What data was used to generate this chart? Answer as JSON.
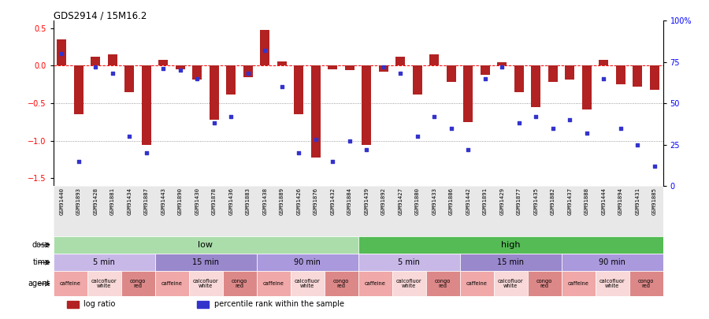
{
  "title": "GDS2914 / 15M16.2",
  "samples": [
    "GSM91440",
    "GSM91893",
    "GSM91428",
    "GSM91881",
    "GSM91434",
    "GSM91887",
    "GSM91443",
    "GSM91890",
    "GSM91430",
    "GSM91878",
    "GSM91436",
    "GSM91883",
    "GSM91438",
    "GSM91889",
    "GSM91426",
    "GSM91876",
    "GSM91432",
    "GSM91884",
    "GSM91439",
    "GSM91892",
    "GSM91427",
    "GSM91880",
    "GSM91433",
    "GSM91886",
    "GSM91442",
    "GSM91891",
    "GSM91429",
    "GSM91877",
    "GSM91435",
    "GSM91882",
    "GSM91437",
    "GSM91888",
    "GSM91444",
    "GSM91894",
    "GSM91431",
    "GSM91885"
  ],
  "log_ratio": [
    0.35,
    -0.65,
    0.12,
    0.15,
    -0.35,
    -1.05,
    0.08,
    -0.05,
    -0.18,
    -0.72,
    -0.38,
    -0.15,
    0.48,
    0.06,
    -0.65,
    -1.22,
    -0.05,
    -0.06,
    -1.05,
    -0.08,
    0.12,
    -0.38,
    0.15,
    -0.22,
    -0.75,
    -0.12,
    0.05,
    -0.35,
    -0.55,
    -0.22,
    -0.18,
    -0.58,
    0.08,
    -0.25,
    -0.28,
    -0.32
  ],
  "percentile_rank": [
    80,
    15,
    72,
    68,
    30,
    20,
    71,
    70,
    65,
    38,
    42,
    68,
    82,
    60,
    20,
    28,
    15,
    27,
    22,
    72,
    68,
    30,
    42,
    35,
    22,
    65,
    72,
    38,
    42,
    35,
    40,
    32,
    65,
    35,
    25,
    12
  ],
  "bar_color": "#b22222",
  "dot_color": "#3333cc",
  "ylim_left": [
    -1.6,
    0.6
  ],
  "ylim_right": [
    0,
    100
  ],
  "yticks_left": [
    0.5,
    0.0,
    -0.5,
    -1.0,
    -1.5
  ],
  "yticks_right": [
    100,
    75,
    50,
    25,
    0
  ],
  "hline_y": 0,
  "dotted_lines": [
    -0.5,
    -1.0
  ],
  "dose_groups": [
    {
      "label": "low",
      "start": 0,
      "end": 18,
      "color": "#aaddaa"
    },
    {
      "label": "high",
      "start": 18,
      "end": 36,
      "color": "#55bb55"
    }
  ],
  "time_groups": [
    {
      "label": "5 min",
      "start": 0,
      "end": 6,
      "color": "#c8b8e8"
    },
    {
      "label": "15 min",
      "start": 6,
      "end": 12,
      "color": "#9988cc"
    },
    {
      "label": "90 min",
      "start": 12,
      "end": 18,
      "color": "#aa99dd"
    },
    {
      "label": "5 min",
      "start": 18,
      "end": 24,
      "color": "#c8b8e8"
    },
    {
      "label": "15 min",
      "start": 24,
      "end": 30,
      "color": "#9988cc"
    },
    {
      "label": "90 min",
      "start": 30,
      "end": 36,
      "color": "#aa99dd"
    }
  ],
  "agent_groups": [
    {
      "label": "caffeine",
      "start": 0,
      "end": 2,
      "color": "#f0a8a8"
    },
    {
      "label": "calcofluor\nwhite",
      "start": 2,
      "end": 4,
      "color": "#f8d8d8"
    },
    {
      "label": "congo\nred",
      "start": 4,
      "end": 6,
      "color": "#dd8888"
    },
    {
      "label": "caffeine",
      "start": 6,
      "end": 8,
      "color": "#f0a8a8"
    },
    {
      "label": "calcofluor\nwhite",
      "start": 8,
      "end": 10,
      "color": "#f8d8d8"
    },
    {
      "label": "congo\nred",
      "start": 10,
      "end": 12,
      "color": "#dd8888"
    },
    {
      "label": "caffeine",
      "start": 12,
      "end": 14,
      "color": "#f0a8a8"
    },
    {
      "label": "calcofluor\nwhite",
      "start": 14,
      "end": 16,
      "color": "#f8d8d8"
    },
    {
      "label": "congo\nred",
      "start": 16,
      "end": 18,
      "color": "#dd8888"
    },
    {
      "label": "caffeine",
      "start": 18,
      "end": 20,
      "color": "#f0a8a8"
    },
    {
      "label": "calcofluor\nwhite",
      "start": 20,
      "end": 22,
      "color": "#f8d8d8"
    },
    {
      "label": "congo\nred",
      "start": 22,
      "end": 24,
      "color": "#dd8888"
    },
    {
      "label": "caffeine",
      "start": 24,
      "end": 26,
      "color": "#f0a8a8"
    },
    {
      "label": "calcofluor\nwhite",
      "start": 26,
      "end": 28,
      "color": "#f8d8d8"
    },
    {
      "label": "congo\nred",
      "start": 28,
      "end": 30,
      "color": "#dd8888"
    },
    {
      "label": "caffeine",
      "start": 30,
      "end": 32,
      "color": "#f0a8a8"
    },
    {
      "label": "calcofluor\nwhite",
      "start": 32,
      "end": 34,
      "color": "#f8d8d8"
    },
    {
      "label": "congo\nred",
      "start": 34,
      "end": 36,
      "color": "#dd8888"
    }
  ],
  "row_labels": [
    "dose",
    "time",
    "agent"
  ],
  "legend_log_ratio_color": "#b22222",
  "legend_percentile_color": "#3333cc",
  "background_color": "#ffffff"
}
